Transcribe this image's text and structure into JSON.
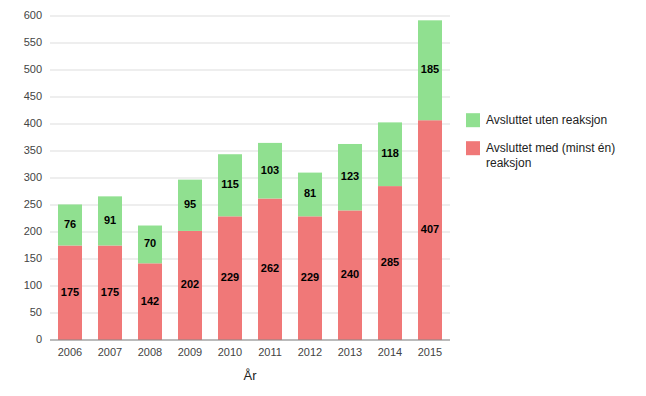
{
  "chart_data": {
    "type": "bar",
    "stacked": true,
    "categories": [
      "2006",
      "2007",
      "2008",
      "2009",
      "2010",
      "2011",
      "2012",
      "2013",
      "2014",
      "2015"
    ],
    "series": [
      {
        "name": "Avsluttet med (minst én)\nreaksjon",
        "color": "#f07878",
        "values": [
          175,
          175,
          142,
          202,
          229,
          262,
          229,
          240,
          285,
          407
        ]
      },
      {
        "name": "Avsluttet uten reaksjon",
        "color": "#90e090",
        "values": [
          76,
          91,
          70,
          95,
          115,
          103,
          81,
          123,
          118,
          185
        ]
      }
    ],
    "xlabel": "År",
    "ylim": [
      0,
      600
    ],
    "yticks": [
      0,
      50,
      100,
      150,
      200,
      250,
      300,
      350,
      400,
      450,
      500,
      550,
      600
    ],
    "grid": true,
    "data_labels": true,
    "legend": "right"
  }
}
